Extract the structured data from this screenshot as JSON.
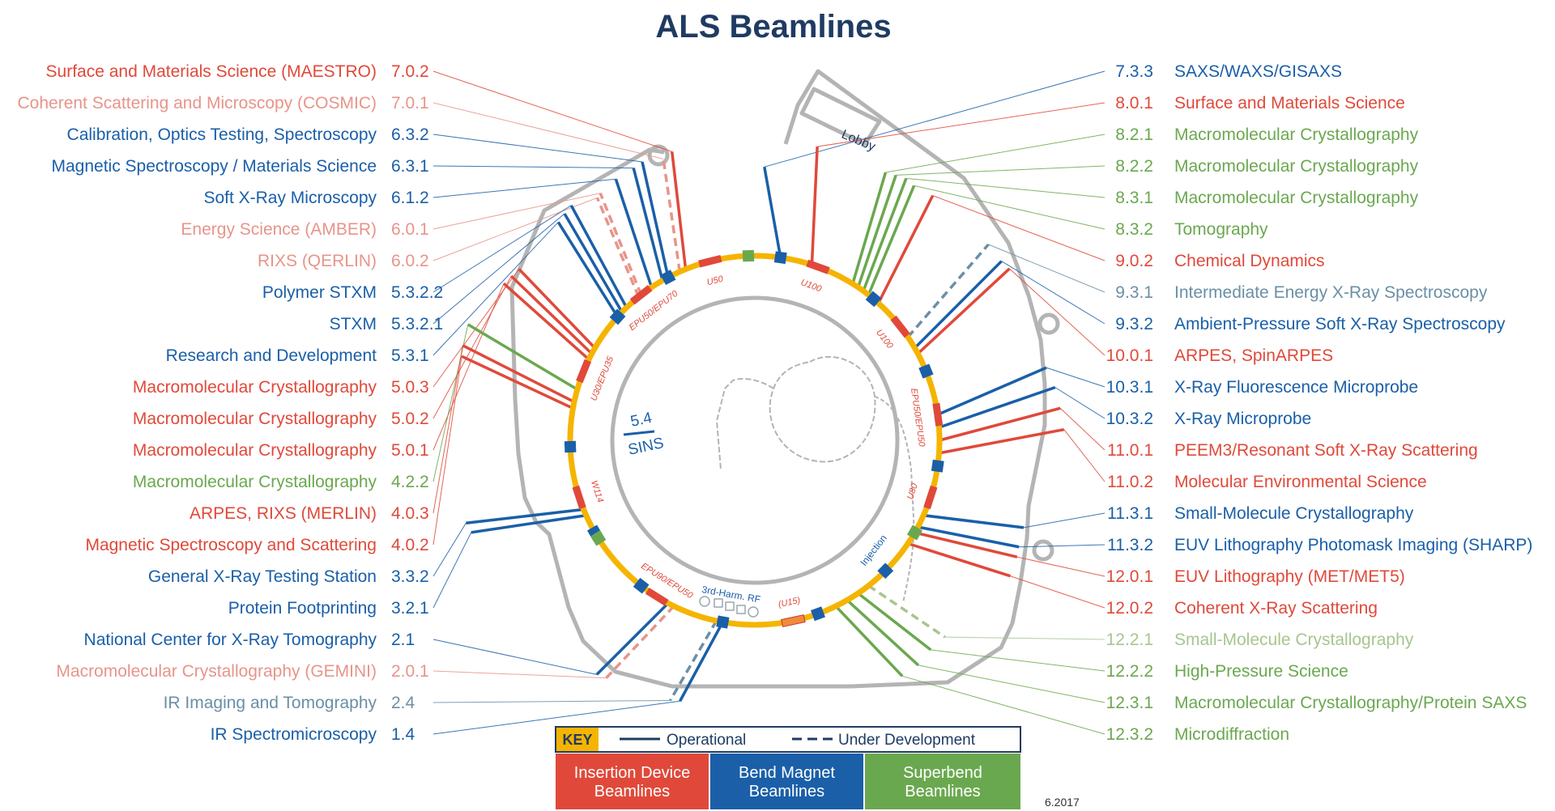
{
  "title": "ALS Beamlines",
  "version_date": "6.2017",
  "lobby_label": "Lobby",
  "sins_label": [
    "5.4",
    "SINS"
  ],
  "inner_labels": {
    "harmonic_rf": "3rd-Harm. RF",
    "injection": "Injection"
  },
  "colors": {
    "insertion": "#e0493a",
    "bend": "#1a5fa8",
    "superbend": "#6aa84f",
    "insertion_dev": "#e8948a",
    "bend_dev": "#6b8fa6",
    "superbend_dev": "#a7c58f",
    "ring": "#f5b400",
    "wall": "#b4b4b4",
    "dark": "#1f3b63"
  },
  "left_beamlines": [
    {
      "name": "Surface and Materials Science (MAESTRO)",
      "id": "7.0.2",
      "type": "insertion",
      "status": "operational"
    },
    {
      "name": "Coherent Scattering and Microscopy (COSMIC)",
      "id": "7.0.1",
      "type": "insertion",
      "status": "development"
    },
    {
      "name": "Calibration, Optics Testing, Spectroscopy",
      "id": "6.3.2",
      "type": "bend",
      "status": "operational"
    },
    {
      "name": "Magnetic Spectroscopy / Materials Science",
      "id": "6.3.1",
      "type": "bend",
      "status": "operational"
    },
    {
      "name": "Soft X-Ray Microscopy",
      "id": "6.1.2",
      "type": "bend",
      "status": "operational"
    },
    {
      "name": "Energy Science (AMBER)",
      "id": "6.0.1",
      "type": "insertion",
      "status": "development"
    },
    {
      "name": "RIXS (QERLIN)",
      "id": "6.0.2",
      "type": "insertion",
      "status": "development"
    },
    {
      "name": "Polymer STXM",
      "id": "5.3.2.2",
      "type": "bend",
      "status": "operational"
    },
    {
      "name": "STXM",
      "id": "5.3.2.1",
      "type": "bend",
      "status": "operational"
    },
    {
      "name": "Research and Development",
      "id": "5.3.1",
      "type": "bend",
      "status": "operational"
    },
    {
      "name": "Macromolecular Crystallography",
      "id": "5.0.3",
      "type": "insertion",
      "status": "operational"
    },
    {
      "name": "Macromolecular Crystallography",
      "id": "5.0.2",
      "type": "insertion",
      "status": "operational"
    },
    {
      "name": "Macromolecular Crystallography",
      "id": "5.0.1",
      "type": "insertion",
      "status": "operational"
    },
    {
      "name": "Macromolecular Crystallography",
      "id": "4.2.2",
      "type": "superbend",
      "status": "operational"
    },
    {
      "name": "ARPES, RIXS (MERLIN)",
      "id": "4.0.3",
      "type": "insertion",
      "status": "operational"
    },
    {
      "name": "Magnetic Spectroscopy and Scattering",
      "id": "4.0.2",
      "type": "insertion",
      "status": "operational"
    },
    {
      "name": "General X-Ray Testing Station",
      "id": "3.3.2",
      "type": "bend",
      "status": "operational"
    },
    {
      "name": "Protein Footprinting",
      "id": "3.2.1",
      "type": "bend",
      "status": "operational"
    },
    {
      "name": "National Center for X-Ray Tomography",
      "id": "2.1",
      "type": "bend",
      "status": "operational"
    },
    {
      "name": "Macromolecular Crystallography (GEMINI)",
      "id": "2.0.1",
      "type": "insertion",
      "status": "development"
    },
    {
      "name": "IR Imaging and Tomography",
      "id": "2.4",
      "type": "bend",
      "status": "development"
    },
    {
      "name": "IR Spectromicroscopy",
      "id": "1.4",
      "type": "bend",
      "status": "operational"
    }
  ],
  "right_beamlines": [
    {
      "name": "SAXS/WAXS/GISAXS",
      "id": "7.3.3",
      "type": "bend",
      "status": "operational"
    },
    {
      "name": "Surface and Materials Science",
      "id": "8.0.1",
      "type": "insertion",
      "status": "operational"
    },
    {
      "name": "Macromolecular Crystallography",
      "id": "8.2.1",
      "type": "superbend",
      "status": "operational"
    },
    {
      "name": "Macromolecular Crystallography",
      "id": "8.2.2",
      "type": "superbend",
      "status": "operational"
    },
    {
      "name": "Macromolecular Crystallography",
      "id": "8.3.1",
      "type": "superbend",
      "status": "operational"
    },
    {
      "name": "Tomography",
      "id": "8.3.2",
      "type": "superbend",
      "status": "operational"
    },
    {
      "name": "Chemical Dynamics",
      "id": "9.0.2",
      "type": "insertion",
      "status": "operational"
    },
    {
      "name": "Intermediate Energy X-Ray Spectroscopy",
      "id": "9.3.1",
      "type": "bend",
      "status": "development"
    },
    {
      "name": "Ambient-Pressure Soft X-Ray Spectroscopy",
      "id": "9.3.2",
      "type": "bend",
      "status": "operational"
    },
    {
      "name": "ARPES, SpinARPES",
      "id": "10.0.1",
      "type": "insertion",
      "status": "operational"
    },
    {
      "name": "X-Ray Fluorescence Microprobe",
      "id": "10.3.1",
      "type": "bend",
      "status": "operational"
    },
    {
      "name": "X-Ray Microprobe",
      "id": "10.3.2",
      "type": "bend",
      "status": "operational"
    },
    {
      "name": "PEEM3/Resonant Soft X-Ray Scattering",
      "id": "11.0.1",
      "type": "insertion",
      "status": "operational"
    },
    {
      "name": "Molecular Environmental Science",
      "id": "11.0.2",
      "type": "insertion",
      "status": "operational"
    },
    {
      "name": "Small-Molecule Crystallography",
      "id": "11.3.1",
      "type": "bend",
      "status": "operational"
    },
    {
      "name": "EUV Lithography Photomask Imaging (SHARP)",
      "id": "11.3.2",
      "type": "bend",
      "status": "operational"
    },
    {
      "name": "EUV Lithography (MET/MET5)",
      "id": "12.0.1",
      "type": "insertion",
      "status": "operational"
    },
    {
      "name": "Coherent X-Ray Scattering",
      "id": "12.0.2",
      "type": "insertion",
      "status": "operational"
    },
    {
      "name": "Small-Molecule Crystallography",
      "id": "12.2.1",
      "type": "superbend",
      "status": "development"
    },
    {
      "name": "High-Pressure Science",
      "id": "12.2.2",
      "type": "superbend",
      "status": "operational"
    },
    {
      "name": "Macromolecular Crystallography/Protein SAXS",
      "id": "12.3.1",
      "type": "superbend",
      "status": "operational"
    },
    {
      "name": "Microdiffraction",
      "id": "12.3.2",
      "type": "superbend",
      "status": "operational"
    }
  ],
  "insertion_devices": [
    {
      "label": "EPU50/EPU70"
    },
    {
      "label": "U50"
    },
    {
      "label": "U100"
    },
    {
      "label": "U100"
    },
    {
      "label": "EPU50/EPU50"
    },
    {
      "label": "U80"
    },
    {
      "label": "(U15)"
    },
    {
      "label": "EPU90/EPU50"
    },
    {
      "label": "W114"
    },
    {
      "label": "U30/EPU35"
    }
  ],
  "key": {
    "label": "KEY",
    "operational": "Operational",
    "development": "Under Development",
    "boxes": [
      {
        "label": [
          "Insertion Device",
          "Beamlines"
        ],
        "type": "insertion"
      },
      {
        "label": [
          "Bend Magnet",
          "Beamlines"
        ],
        "type": "bend"
      },
      {
        "label": [
          "Superbend",
          "Beamlines"
        ],
        "type": "superbend"
      }
    ]
  }
}
